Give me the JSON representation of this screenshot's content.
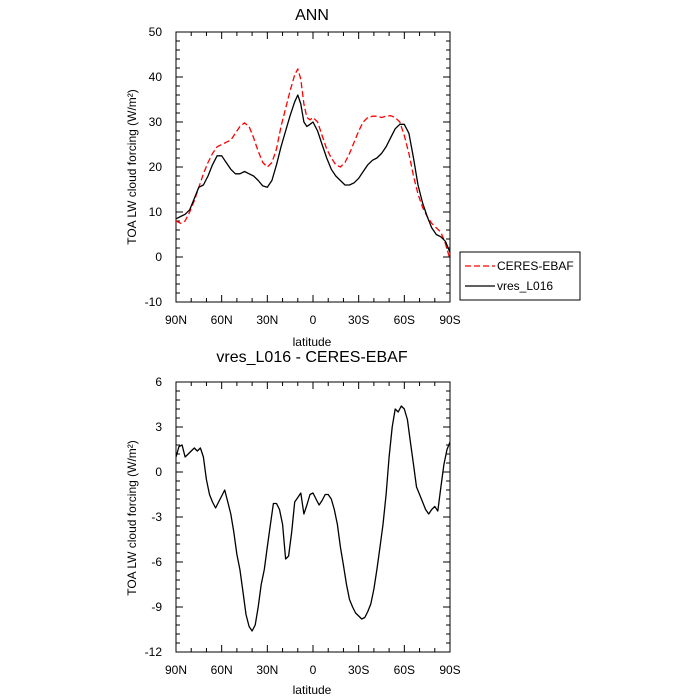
{
  "chart_data": [
    {
      "type": "line",
      "title": "ANN",
      "xlabel": "latitude",
      "ylabel": "TOA LW cloud forcing (W/m²)",
      "x_ticks": [
        "90N",
        "60N",
        "30N",
        "0",
        "30S",
        "60S",
        "90S"
      ],
      "x_tick_values": [
        90,
        60,
        30,
        0,
        -30,
        -60,
        -90
      ],
      "y_ticks": [
        "-10",
        "0",
        "10",
        "20",
        "30",
        "40",
        "50"
      ],
      "xlim": [
        90,
        -90
      ],
      "ylim": [
        -10,
        50
      ],
      "legend": "outside-right",
      "series": [
        {
          "name": "CERES-EBAF",
          "color": "#ff0000",
          "dash": "dashed",
          "x": [
            90,
            87,
            84,
            81,
            78,
            75,
            72,
            69,
            66,
            63,
            60,
            57,
            54,
            51,
            48,
            45,
            42,
            39,
            36,
            33,
            30,
            27,
            24,
            21,
            18,
            15,
            12,
            10,
            8,
            6,
            4,
            2,
            0,
            -3,
            -6,
            -9,
            -12,
            -15,
            -18,
            -21,
            -24,
            -27,
            -30,
            -33,
            -36,
            -39,
            -42,
            -45,
            -48,
            -51,
            -54,
            -57,
            -60,
            -63,
            -66,
            -69,
            -72,
            -75,
            -78,
            -81,
            -84,
            -87,
            -90
          ],
          "values": [
            8.0,
            7.5,
            8.0,
            10.0,
            12.5,
            15.5,
            18.5,
            21.0,
            23.0,
            24.5,
            25.0,
            25.5,
            26.0,
            27.5,
            29.0,
            29.8,
            29.0,
            26.5,
            23.5,
            21.0,
            20.0,
            21.0,
            24.0,
            29.0,
            33.0,
            37.0,
            40.5,
            41.8,
            39.5,
            34.0,
            31.0,
            30.5,
            31.0,
            30.0,
            27.0,
            24.0,
            22.0,
            20.5,
            20.0,
            21.0,
            23.0,
            25.5,
            28.0,
            30.0,
            31.0,
            31.3,
            31.3,
            31.0,
            31.3,
            31.4,
            31.0,
            30.0,
            27.0,
            23.0,
            18.0,
            14.0,
            11.0,
            9.0,
            7.5,
            6.5,
            5.5,
            3.0,
            -0.5
          ]
        },
        {
          "name": "vres_L016",
          "color": "#000000",
          "dash": "solid",
          "x": [
            90,
            87,
            84,
            81,
            78,
            75,
            72,
            69,
            66,
            63,
            60,
            57,
            54,
            51,
            48,
            45,
            42,
            39,
            36,
            33,
            30,
            27,
            24,
            21,
            18,
            15,
            12,
            10,
            8,
            6,
            4,
            2,
            0,
            -3,
            -6,
            -9,
            -12,
            -15,
            -18,
            -21,
            -24,
            -27,
            -30,
            -33,
            -36,
            -39,
            -42,
            -45,
            -48,
            -51,
            -54,
            -57,
            -60,
            -63,
            -66,
            -69,
            -72,
            -75,
            -78,
            -81,
            -84,
            -87,
            -90
          ],
          "values": [
            8.5,
            9.0,
            9.5,
            10.5,
            13.0,
            15.5,
            16.0,
            18.0,
            20.5,
            22.5,
            22.5,
            21.0,
            19.5,
            18.5,
            18.5,
            19.0,
            18.5,
            18.0,
            17.0,
            15.8,
            15.5,
            17.0,
            20.5,
            24.5,
            28.0,
            31.5,
            34.5,
            36.0,
            34.0,
            30.0,
            29.0,
            29.5,
            30.0,
            28.0,
            25.0,
            22.0,
            19.5,
            18.0,
            17.0,
            16.0,
            16.0,
            16.5,
            17.5,
            19.0,
            20.5,
            21.5,
            22.0,
            23.0,
            24.5,
            26.5,
            28.5,
            29.5,
            29.5,
            27.5,
            22.0,
            16.0,
            12.0,
            9.0,
            6.5,
            5.0,
            4.5,
            3.5,
            1.0
          ]
        }
      ]
    },
    {
      "type": "line",
      "title": "vres_L016 - CERES-EBAF",
      "xlabel": "latitude",
      "ylabel": "TOA LW cloud forcing (W/m²)",
      "x_ticks": [
        "90N",
        "60N",
        "30N",
        "0",
        "30S",
        "60S",
        "90S"
      ],
      "x_tick_values": [
        90,
        60,
        30,
        0,
        -30,
        -60,
        -90
      ],
      "y_ticks": [
        "-12",
        "-9",
        "-6",
        "-3",
        "0",
        "3",
        "6"
      ],
      "xlim": [
        90,
        -90
      ],
      "ylim": [
        -12,
        6
      ],
      "series": [
        {
          "color": "#000000",
          "dash": "solid",
          "x": [
            90,
            88,
            86,
            84,
            82,
            80,
            78,
            76,
            74,
            72,
            70,
            68,
            66,
            64,
            62,
            60,
            58,
            56,
            54,
            52,
            50,
            48,
            46,
            44,
            42,
            40,
            38,
            36,
            34,
            32,
            30,
            28,
            26,
            24,
            22,
            20,
            18,
            16,
            14,
            12,
            10,
            8,
            6,
            4,
            2,
            0,
            -2,
            -4,
            -6,
            -8,
            -10,
            -12,
            -14,
            -16,
            -18,
            -20,
            -22,
            -24,
            -26,
            -28,
            -30,
            -32,
            -34,
            -36,
            -38,
            -40,
            -42,
            -44,
            -46,
            -48,
            -50,
            -52,
            -54,
            -56,
            -58,
            -60,
            -62,
            -64,
            -66,
            -68,
            -70,
            -72,
            -74,
            -76,
            -78,
            -80,
            -82,
            -84,
            -86,
            -88,
            -90
          ],
          "values": [
            1.0,
            1.7,
            1.8,
            1.0,
            1.2,
            1.4,
            1.6,
            1.4,
            1.6,
            1.0,
            -0.5,
            -1.5,
            -2.0,
            -2.4,
            -2.0,
            -1.6,
            -1.2,
            -2.0,
            -2.8,
            -4.0,
            -5.5,
            -6.5,
            -8.0,
            -9.5,
            -10.3,
            -10.6,
            -10.2,
            -9.0,
            -7.5,
            -6.5,
            -5.0,
            -3.5,
            -2.1,
            -2.1,
            -2.5,
            -3.5,
            -5.8,
            -5.6,
            -4.0,
            -2.0,
            -1.7,
            -1.4,
            -2.8,
            -2.2,
            -1.5,
            -1.4,
            -1.8,
            -2.2,
            -1.9,
            -1.5,
            -1.5,
            -1.8,
            -2.5,
            -3.5,
            -5.0,
            -6.2,
            -7.5,
            -8.5,
            -9.0,
            -9.4,
            -9.6,
            -9.8,
            -9.7,
            -9.3,
            -8.8,
            -7.8,
            -6.5,
            -5.0,
            -3.5,
            -1.5,
            1.0,
            3.0,
            4.2,
            4.0,
            4.4,
            4.2,
            3.5,
            2.0,
            0.5,
            -1.0,
            -1.5,
            -2.0,
            -2.5,
            -2.8,
            -2.5,
            -2.3,
            -2.6,
            -1.0,
            0.5,
            1.5,
            2.0
          ]
        }
      ]
    }
  ]
}
